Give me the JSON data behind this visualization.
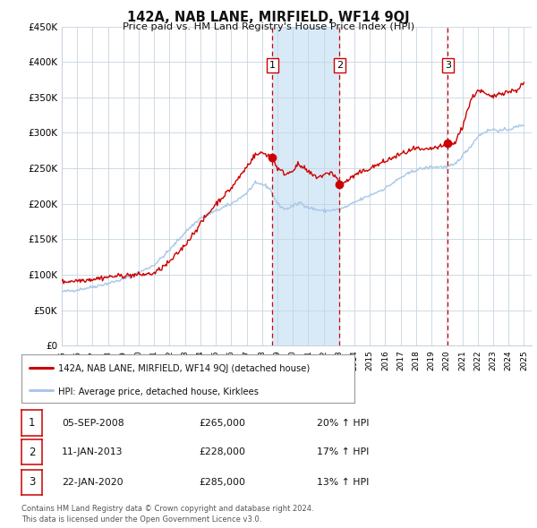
{
  "title": "142A, NAB LANE, MIRFIELD, WF14 9QJ",
  "subtitle": "Price paid vs. HM Land Registry's House Price Index (HPI)",
  "legend_line1": "142A, NAB LANE, MIRFIELD, WF14 9QJ (detached house)",
  "legend_line2": "HPI: Average price, detached house, Kirklees",
  "footer1": "Contains HM Land Registry data © Crown copyright and database right 2024.",
  "footer2": "This data is licensed under the Open Government Licence v3.0.",
  "sale_color": "#cc0000",
  "hpi_color": "#a8c8e8",
  "background_color": "#ffffff",
  "chart_bg": "#ffffff",
  "grid_color": "#c8d4e0",
  "shade_color": "#d8eaf8",
  "ylim": [
    0,
    450000
  ],
  "yticks": [
    0,
    50000,
    100000,
    150000,
    200000,
    250000,
    300000,
    350000,
    400000,
    450000
  ],
  "xlim_start": 1995.0,
  "xlim_end": 2025.5,
  "sales": [
    {
      "date": 2008.68,
      "price": 265000,
      "label": "1",
      "note": "05-SEP-2008",
      "pct": "20% ↑ HPI"
    },
    {
      "date": 2013.03,
      "price": 228000,
      "label": "2",
      "note": "11-JAN-2013",
      "pct": "17% ↑ HPI"
    },
    {
      "date": 2020.06,
      "price": 285000,
      "label": "3",
      "note": "22-JAN-2020",
      "pct": "13% ↑ HPI"
    }
  ],
  "hpi_anchors": [
    [
      1995.0,
      76000
    ],
    [
      1996.0,
      79000
    ],
    [
      1997.0,
      83000
    ],
    [
      1998.0,
      88000
    ],
    [
      1999.0,
      94000
    ],
    [
      2000.0,
      103000
    ],
    [
      2001.0,
      114000
    ],
    [
      2002.0,
      135000
    ],
    [
      2003.0,
      160000
    ],
    [
      2004.0,
      180000
    ],
    [
      2005.0,
      190000
    ],
    [
      2006.0,
      200000
    ],
    [
      2007.0,
      215000
    ],
    [
      2007.5,
      228000
    ],
    [
      2008.0,
      228000
    ],
    [
      2008.5,
      222000
    ],
    [
      2009.0,
      200000
    ],
    [
      2009.5,
      192000
    ],
    [
      2010.0,
      197000
    ],
    [
      2010.5,
      202000
    ],
    [
      2011.0,
      195000
    ],
    [
      2011.5,
      192000
    ],
    [
      2012.0,
      190000
    ],
    [
      2012.5,
      191000
    ],
    [
      2013.0,
      192000
    ],
    [
      2013.5,
      196000
    ],
    [
      2014.0,
      202000
    ],
    [
      2015.0,
      212000
    ],
    [
      2016.0,
      222000
    ],
    [
      2017.0,
      237000
    ],
    [
      2018.0,
      248000
    ],
    [
      2019.0,
      252000
    ],
    [
      2020.0,
      252000
    ],
    [
      2020.5,
      255000
    ],
    [
      2021.0,
      268000
    ],
    [
      2021.5,
      280000
    ],
    [
      2022.0,
      295000
    ],
    [
      2022.5,
      302000
    ],
    [
      2023.0,
      305000
    ],
    [
      2023.5,
      303000
    ],
    [
      2024.0,
      305000
    ],
    [
      2024.5,
      308000
    ],
    [
      2025.0,
      312000
    ]
  ],
  "sale_anchors": [
    [
      1995.0,
      90000
    ],
    [
      1996.0,
      92000
    ],
    [
      1997.0,
      94000
    ],
    [
      1998.0,
      97000
    ],
    [
      1999.0,
      99000
    ],
    [
      2000.0,
      100000
    ],
    [
      2001.0,
      102000
    ],
    [
      2002.0,
      118000
    ],
    [
      2003.0,
      142000
    ],
    [
      2004.0,
      172000
    ],
    [
      2005.0,
      200000
    ],
    [
      2006.0,
      222000
    ],
    [
      2007.0,
      252000
    ],
    [
      2007.5,
      268000
    ],
    [
      2008.0,
      272000
    ],
    [
      2008.5,
      268000
    ],
    [
      2008.68,
      265000
    ],
    [
      2009.0,
      250000
    ],
    [
      2009.3,
      245000
    ],
    [
      2009.6,
      242000
    ],
    [
      2010.0,
      248000
    ],
    [
      2010.3,
      255000
    ],
    [
      2010.6,
      252000
    ],
    [
      2011.0,
      245000
    ],
    [
      2011.3,
      240000
    ],
    [
      2011.6,
      238000
    ],
    [
      2012.0,
      240000
    ],
    [
      2012.5,
      245000
    ],
    [
      2013.0,
      232000
    ],
    [
      2013.03,
      228000
    ],
    [
      2013.5,
      232000
    ],
    [
      2014.0,
      240000
    ],
    [
      2015.0,
      250000
    ],
    [
      2016.0,
      260000
    ],
    [
      2017.0,
      270000
    ],
    [
      2018.0,
      278000
    ],
    [
      2018.5,
      275000
    ],
    [
      2019.0,
      278000
    ],
    [
      2019.5,
      280000
    ],
    [
      2020.0,
      282000
    ],
    [
      2020.06,
      285000
    ],
    [
      2020.5,
      285000
    ],
    [
      2021.0,
      308000
    ],
    [
      2021.3,
      330000
    ],
    [
      2021.6,
      348000
    ],
    [
      2022.0,
      360000
    ],
    [
      2022.3,
      358000
    ],
    [
      2022.6,
      353000
    ],
    [
      2023.0,
      350000
    ],
    [
      2023.3,
      355000
    ],
    [
      2023.6,
      357000
    ],
    [
      2024.0,
      358000
    ],
    [
      2024.5,
      360000
    ],
    [
      2025.0,
      370000
    ]
  ]
}
